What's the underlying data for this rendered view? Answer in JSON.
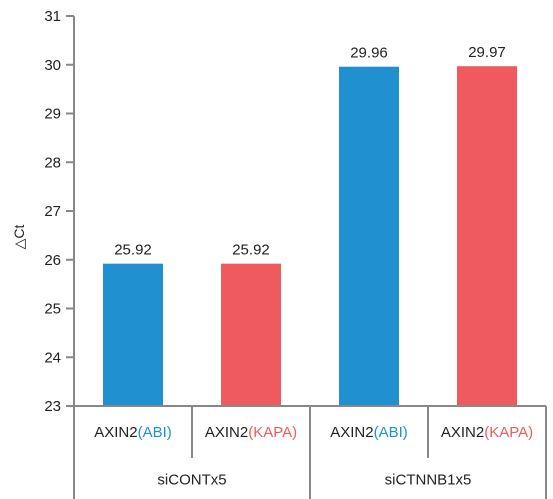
{
  "chart_data": {
    "type": "bar",
    "ylabel": "△Ct",
    "ylim": [
      23,
      31
    ],
    "yticks": [
      23,
      24,
      25,
      26,
      27,
      28,
      29,
      30,
      31
    ],
    "grid": false,
    "categories": [
      {
        "prefix": "AXIN2",
        "suffix": "(ABI)",
        "suffix_color": "#2090d0",
        "group": "siCONTx5"
      },
      {
        "prefix": "AXIN2",
        "suffix": "(KAPA)",
        "suffix_color": "#ee5a5e",
        "group": "siCONTx5"
      },
      {
        "prefix": "AXIN2",
        "suffix": "(ABI)",
        "suffix_color": "#2090d0",
        "group": "siCTNNB1x5"
      },
      {
        "prefix": "AXIN2",
        "suffix": "(KAPA)",
        "suffix_color": "#ee5a5e",
        "group": "siCTNNB1x5"
      }
    ],
    "groups": [
      "siCONTx5",
      "siCTNNB1x5"
    ],
    "values": [
      25.92,
      25.92,
      29.96,
      29.97
    ],
    "value_labels": [
      "25.92",
      "25.92",
      "29.96",
      "29.97"
    ],
    "bar_colors": [
      "#2090d0",
      "#ee5a5e",
      "#2090d0",
      "#ee5a5e"
    ],
    "axis_color": "#888888"
  }
}
